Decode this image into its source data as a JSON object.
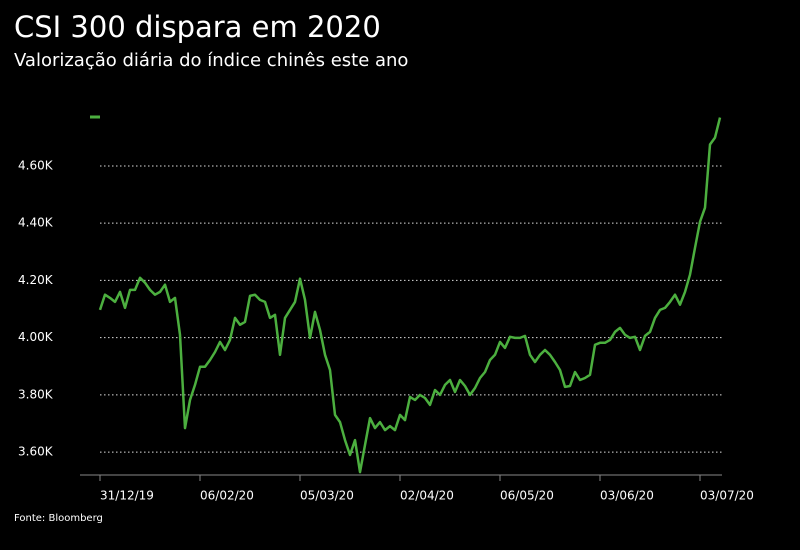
{
  "chart_data": {
    "type": "line",
    "title": "CSI 300 dispara em 2020",
    "subtitle": "Valorização diária do índice chinês este ano",
    "source": "Fonte: Bloomberg",
    "categories": [
      "31/12/19",
      null,
      null,
      null,
      null,
      null,
      null,
      null,
      null,
      null,
      null,
      null,
      null,
      null,
      null,
      null,
      null,
      null,
      null,
      null,
      "06/02/20",
      null,
      null,
      null,
      null,
      null,
      null,
      null,
      null,
      null,
      null,
      null,
      null,
      null,
      null,
      null,
      null,
      null,
      null,
      null,
      "05/03/20",
      null,
      null,
      null,
      null,
      null,
      null,
      null,
      null,
      null,
      null,
      null,
      null,
      null,
      null,
      null,
      null,
      null,
      null,
      null,
      "02/04/20",
      null,
      null,
      null,
      null,
      null,
      null,
      null,
      null,
      null,
      null,
      null,
      null,
      null,
      null,
      null,
      null,
      null,
      null,
      null,
      "06/05/20",
      null,
      null,
      null,
      null,
      null,
      null,
      null,
      null,
      null,
      null,
      null,
      null,
      null,
      null,
      null,
      null,
      null,
      null,
      null,
      "03/06/20",
      null,
      null,
      null,
      null,
      null,
      null,
      null,
      null,
      null,
      null,
      null,
      null,
      null,
      null,
      null,
      null,
      null,
      null,
      null,
      "03/07/20",
      null,
      null,
      null,
      null
    ],
    "series": [
      {
        "color": "#4caf3f",
        "values": [
          4097,
          4150,
          4139,
          4125,
          4160,
          4104,
          4167,
          4167,
          4209,
          4192,
          4167,
          4150,
          4160,
          4185,
          4125,
          4139,
          4010,
          3684,
          3782,
          3835,
          3898,
          3898,
          3922,
          3950,
          3985,
          3957,
          3992,
          4069,
          4045,
          4055,
          4146,
          4150,
          4132,
          4125,
          4069,
          4080,
          3940,
          4069,
          4097,
          4125,
          4206,
          4132,
          3999,
          4090,
          4027,
          3940,
          3887,
          3730,
          3705,
          3642,
          3590,
          3642,
          3530,
          3625,
          3719,
          3684,
          3705,
          3677,
          3691,
          3677,
          3730,
          3712,
          3793,
          3782,
          3800,
          3789,
          3765,
          3817,
          3800,
          3835,
          3852,
          3810,
          3852,
          3831,
          3800,
          3824,
          3859,
          3880,
          3922,
          3940,
          3985,
          3964,
          4003,
          3999,
          3999,
          4006,
          3940,
          3915,
          3940,
          3957,
          3940,
          3915,
          3887,
          3828,
          3831,
          3880,
          3852,
          3859,
          3870,
          3975,
          3982,
          3982,
          3992,
          4020,
          4034,
          4010,
          3999,
          4003,
          3957,
          4006,
          4020,
          4069,
          4097,
          4104,
          4125,
          4150,
          4115,
          4160,
          4220,
          4314,
          4405,
          4454,
          4675,
          4699,
          4769
        ]
      }
    ],
    "ylim": [
      3520,
      4820
    ],
    "yticks": [
      {
        "value": 3600,
        "label": "3.60K"
      },
      {
        "value": 3800,
        "label": "3.80K"
      },
      {
        "value": 4000,
        "label": "4.00K"
      },
      {
        "value": 4200,
        "label": "4.20K"
      },
      {
        "value": 4400,
        "label": "4.40K"
      },
      {
        "value": 4600,
        "label": "4.60K"
      }
    ],
    "grid": true
  }
}
